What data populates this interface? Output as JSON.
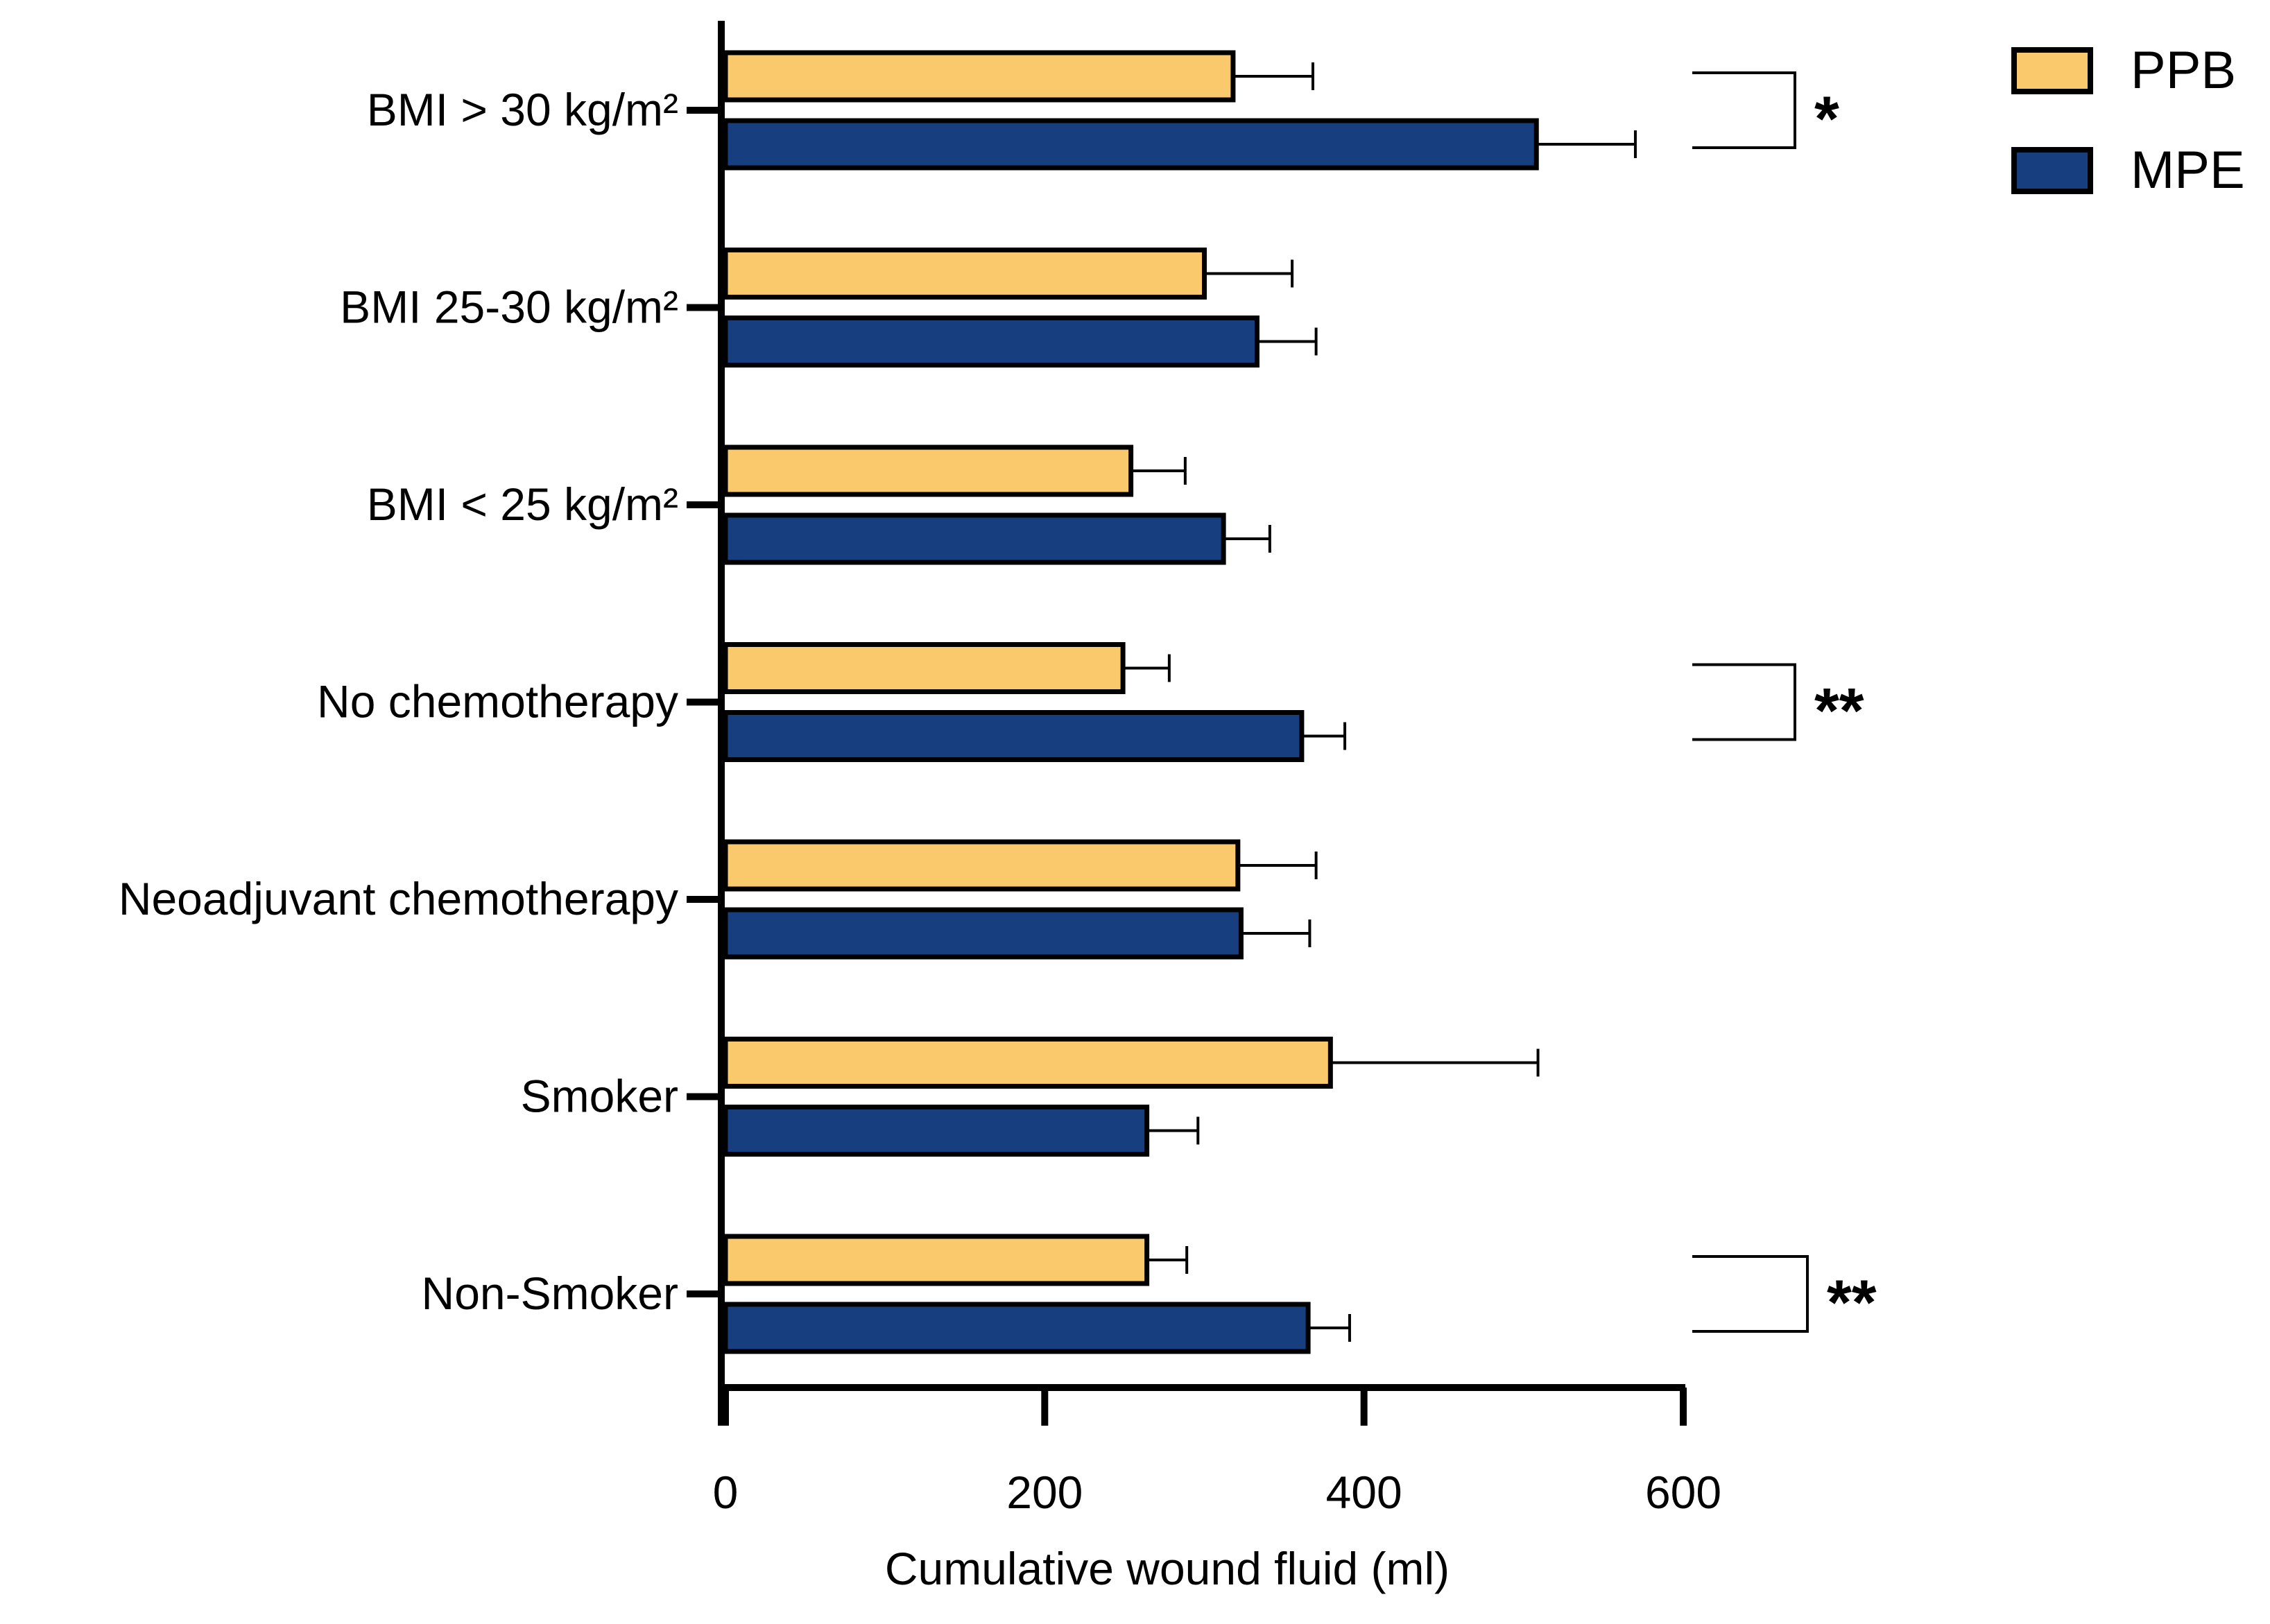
{
  "chart_data": {
    "type": "bar",
    "orientation": "horizontal",
    "title": "",
    "xlabel": "Cumulative wound fluid (ml)",
    "ylabel": "",
    "xlim": [
      0,
      600
    ],
    "xticks": [
      "0",
      "200",
      "400",
      "600"
    ],
    "grid": false,
    "legend_position": "top-right",
    "categories": [
      "BMI > 30 kg/m²",
      "BMI 25-30 kg/m²",
      "BMI < 25 kg/m²",
      "No chemotherapy",
      "Neoadjuvant chemotherapy",
      "Smoker",
      "Non-Smoker"
    ],
    "series": [
      {
        "name": "PPB",
        "color": "#f9c96b",
        "values": [
          318,
          300,
          254,
          249,
          321,
          379,
          264
        ],
        "error": [
          50,
          55,
          34,
          29,
          49,
          130,
          25
        ]
      },
      {
        "name": "MPE",
        "color": "#173f80",
        "values": [
          508,
          333,
          312,
          361,
          323,
          264,
          365
        ],
        "error": [
          62,
          37,
          29,
          27,
          43,
          32,
          26
        ]
      }
    ],
    "significance": [
      {
        "category": "BMI > 30 kg/m²",
        "label": "*"
      },
      {
        "category": "No chemotherapy",
        "label": "**"
      },
      {
        "category": "Non-Smoker",
        "label": "**"
      }
    ]
  }
}
